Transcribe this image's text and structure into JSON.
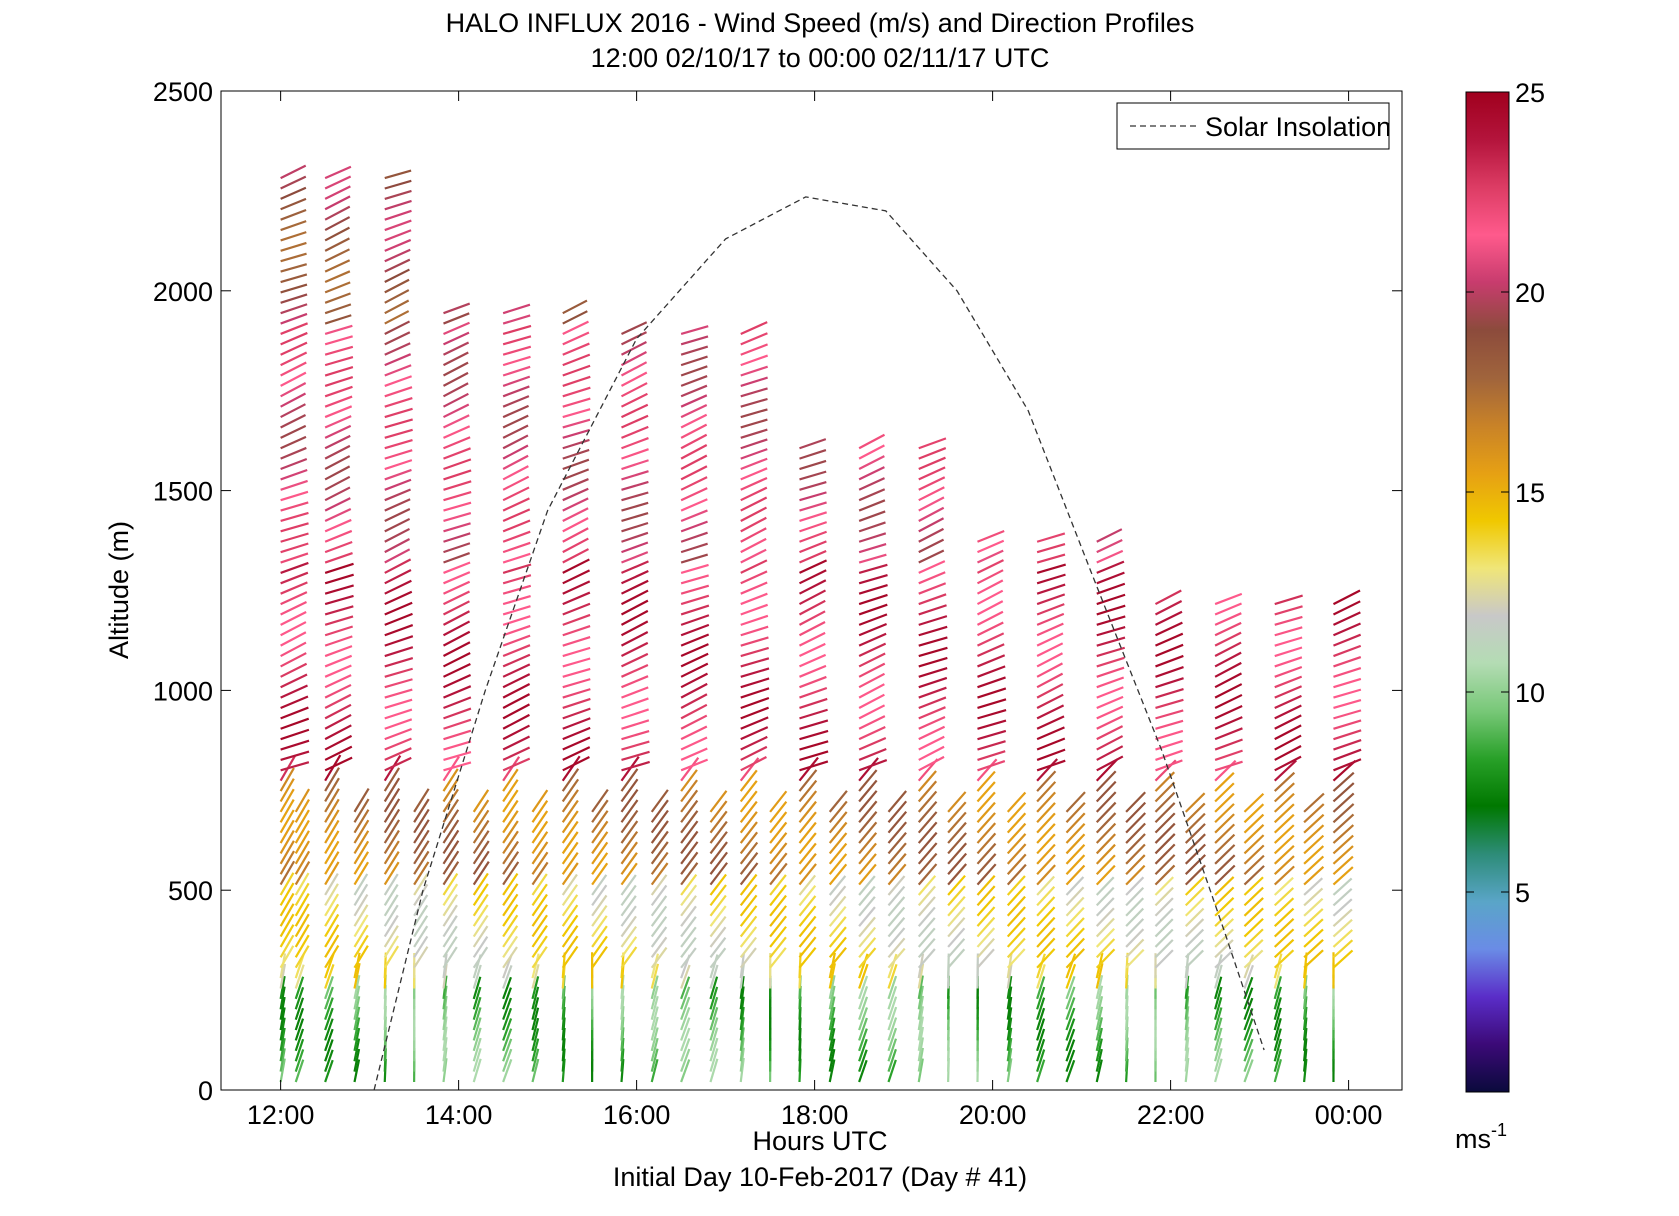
{
  "chart_data": {
    "type": "quiver",
    "title": "HALO INFLUX 2016 - Wind Speed (m/s) and Direction Profiles",
    "subtitle": "12:00 02/10/17 to 00:00 02/11/17  UTC",
    "xlabel": "Hours UTC",
    "footer": "Initial Day 10-Feb-2017 (Day # 41)",
    "ylabel": "Altitude (m)",
    "xlim": [
      11.33,
      24.6
    ],
    "ylim": [
      0,
      2500
    ],
    "x_ticks": [
      12,
      14,
      16,
      18,
      20,
      22,
      24
    ],
    "x_tick_labels": [
      "12:00",
      "14:00",
      "16:00",
      "18:00",
      "20:00",
      "22:00",
      "00:00"
    ],
    "y_ticks": [
      0,
      500,
      1000,
      1500,
      2000,
      2500
    ],
    "y_tick_labels": [
      "0",
      "500",
      "1000",
      "1500",
      "2000",
      "2500"
    ],
    "legend": {
      "label": "Solar Insolation",
      "location": "top-right",
      "style": "dashed"
    },
    "colorbar": {
      "range": [
        0,
        25
      ],
      "ticks": [
        5,
        10,
        15,
        20,
        25
      ],
      "tick_labels": [
        "5",
        "10",
        "15",
        "20",
        "25"
      ],
      "unit_label": "ms",
      "unit_exponent": "-1"
    },
    "solar_insolation_curve": {
      "description_points_hours_altitude": [
        [
          13.05,
          0
        ],
        [
          13.6,
          500
        ],
        [
          14.3,
          1000
        ],
        [
          15.0,
          1450
        ],
        [
          16.0,
          1880
        ],
        [
          17.0,
          2130
        ],
        [
          17.9,
          2235
        ],
        [
          18.8,
          2200
        ],
        [
          19.6,
          2000
        ],
        [
          20.4,
          1700
        ],
        [
          21.1,
          1300
        ],
        [
          21.9,
          850
        ],
        [
          22.6,
          400
        ],
        [
          23.05,
          100
        ]
      ]
    },
    "profile_times_hours": [
      12.0,
      12.17,
      12.5,
      12.83,
      13.17,
      13.5,
      13.83,
      14.17,
      14.5,
      14.83,
      15.17,
      15.5,
      15.83,
      16.17,
      16.5,
      16.83,
      17.17,
      17.5,
      17.83,
      18.17,
      18.5,
      18.83,
      19.17,
      19.5,
      19.83,
      20.17,
      20.5,
      20.83,
      21.17,
      21.5,
      21.83,
      22.17,
      22.5,
      22.83,
      23.17,
      23.5,
      23.83
    ],
    "wind_regimes_m_s": [
      {
        "altitude_range_m": [
          0,
          250
        ],
        "speed_m_s": 9,
        "direction": "southerly, low-level"
      },
      {
        "altitude_range_m": [
          250,
          500
        ],
        "speed_m_s": 13,
        "direction": "southwesterly"
      },
      {
        "altitude_range_m": [
          500,
          750
        ],
        "speed_m_s": 17,
        "direction": "southwesterly"
      },
      {
        "altitude_range_m": [
          750,
          1300
        ],
        "speed_m_s": 23,
        "direction": "west-southwesterly"
      },
      {
        "altitude_range_m": [
          1300,
          1900
        ],
        "speed_m_s": 21,
        "direction": "west-southwesterly"
      },
      {
        "altitude_range_m": [
          1900,
          2300
        ],
        "speed_m_s": 19,
        "direction": "westerly"
      }
    ],
    "colors": {
      "colormap_stops": [
        "#0a0a3c",
        "#3c0a78",
        "#5a2dc8",
        "#6a8ce6",
        "#5aa5c8",
        "#2d8c78",
        "#007800",
        "#28a028",
        "#78c878",
        "#b4dcb4",
        "#c8c8c8",
        "#f0e678",
        "#f0c800",
        "#e6a014",
        "#c88228",
        "#a0643c",
        "#8c4b3c",
        "#c83c6e",
        "#ff5a8c",
        "#dc3c64",
        "#b4143c",
        "#a0001e"
      ]
    }
  }
}
